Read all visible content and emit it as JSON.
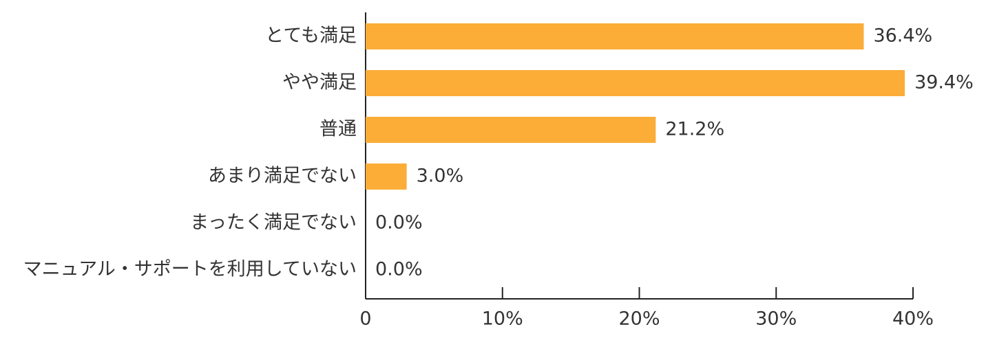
{
  "chart_data": {
    "type": "hbar",
    "categories": [
      "とても満足",
      "やや満足",
      "普通",
      "あまり満足でない",
      "まったく満足でない",
      "マニュアル・サポートを利用していない"
    ],
    "values": [
      36.4,
      39.4,
      21.2,
      3.0,
      0.0,
      0.0
    ],
    "value_labels": [
      "36.4%",
      "39.4%",
      "21.2%",
      "3.0%",
      "0.0%",
      "0.0%"
    ],
    "color": "#fbad38",
    "xlim": [
      0,
      40
    ],
    "xticks": [
      0,
      {
        "value": 10,
        "label": "10%"
      },
      {
        "value": 20,
        "label": "20%"
      },
      {
        "value": 30,
        "label": "30%"
      },
      {
        "value": 40,
        "label": "40%"
      }
    ]
  }
}
